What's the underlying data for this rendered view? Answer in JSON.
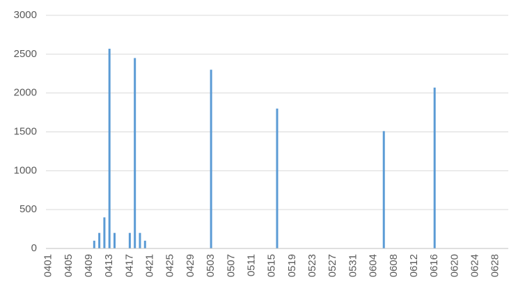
{
  "chart_data": {
    "type": "bar",
    "categories": [
      "0401",
      null,
      null,
      null,
      "0405",
      null,
      null,
      null,
      "0409",
      null,
      null,
      null,
      "0413",
      null,
      null,
      null,
      "0417",
      null,
      null,
      null,
      "0421",
      null,
      null,
      null,
      "0425",
      null,
      null,
      null,
      "0429",
      null,
      null,
      null,
      "0503",
      null,
      null,
      null,
      "0507",
      null,
      null,
      null,
      "0511",
      null,
      null,
      null,
      "0515",
      null,
      null,
      null,
      "0519",
      null,
      null,
      null,
      "0523",
      null,
      null,
      null,
      "0527",
      null,
      null,
      null,
      "0531",
      null,
      null,
      null,
      "0604",
      null,
      null,
      null,
      "0608",
      null,
      null,
      null,
      "0612",
      null,
      null,
      null,
      "0616",
      null,
      null,
      null,
      "0620",
      null,
      null,
      null,
      "0624",
      null,
      null,
      null,
      "0628",
      null,
      null
    ],
    "values": [
      0,
      0,
      0,
      0,
      0,
      0,
      0,
      0,
      0,
      100,
      200,
      400,
      2570,
      200,
      0,
      0,
      200,
      2450,
      200,
      100,
      0,
      0,
      0,
      0,
      0,
      0,
      0,
      0,
      0,
      0,
      0,
      0,
      2300,
      0,
      0,
      0,
      0,
      0,
      0,
      0,
      0,
      0,
      0,
      0,
      0,
      1800,
      0,
      0,
      0,
      0,
      0,
      0,
      0,
      0,
      0,
      0,
      0,
      0,
      0,
      0,
      0,
      0,
      0,
      0,
      0,
      0,
      1510,
      0,
      0,
      0,
      0,
      0,
      0,
      0,
      0,
      0,
      2070,
      0,
      0,
      0,
      0,
      0,
      0,
      0,
      0,
      0,
      0,
      0,
      0,
      0,
      0
    ],
    "color": "#5b9bd5",
    "ylim": [
      0,
      3000
    ],
    "yticks": [
      0,
      500,
      1000,
      1500,
      2000,
      2500,
      3000
    ],
    "grid": true
  }
}
